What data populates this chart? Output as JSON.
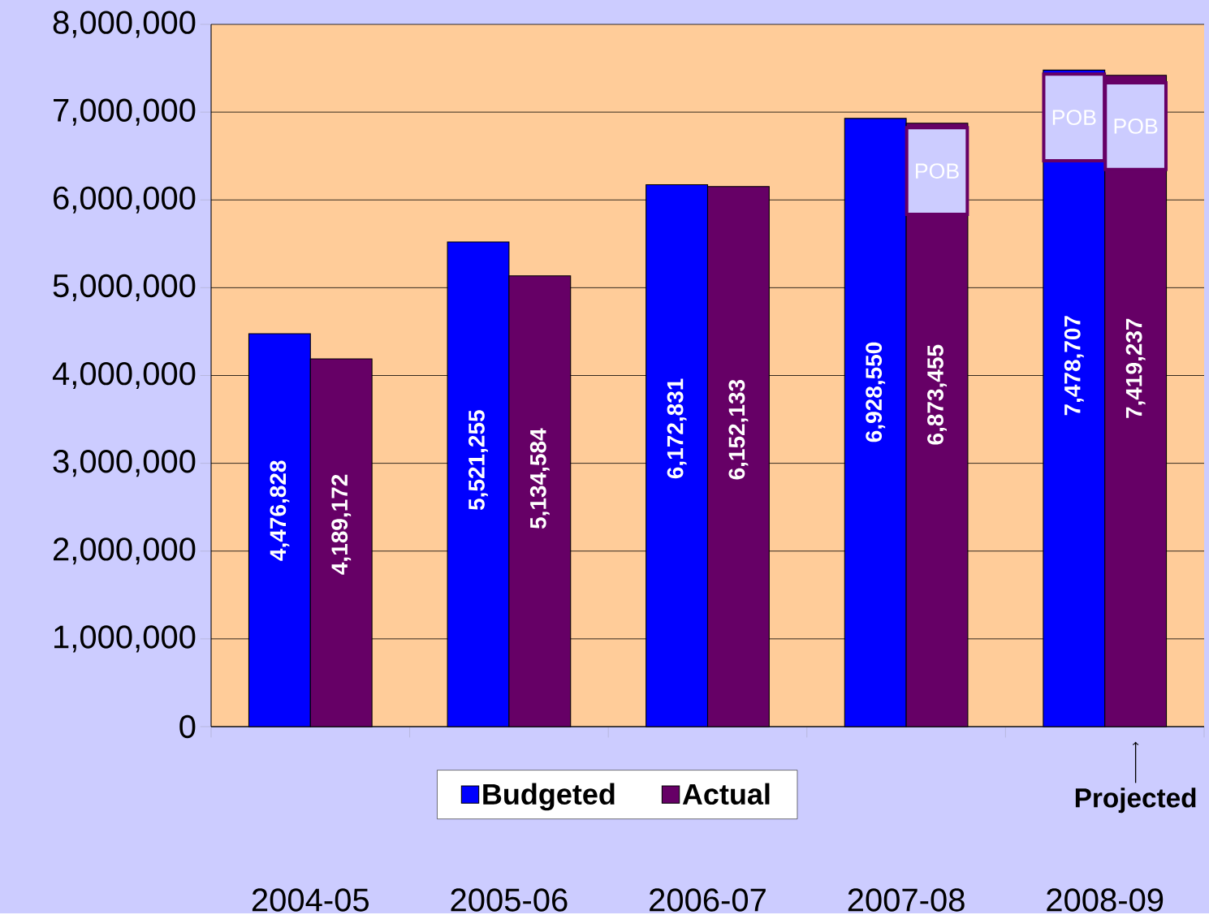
{
  "chart_data": {
    "type": "bar",
    "categories": [
      "2004-05",
      "2005-06",
      "2006-07",
      "2007-08",
      "2008-09"
    ],
    "series": [
      {
        "name": "Budgeted",
        "color": "#0000ff",
        "values": [
          4476828,
          5521255,
          6172831,
          6928550,
          7478707
        ],
        "value_labels": [
          "4,476,828",
          "5,521,255",
          "6,172,831",
          "6,928,550",
          "7,478,707"
        ]
      },
      {
        "name": "Actual",
        "color": "#660066",
        "values": [
          4189172,
          5134584,
          6152133,
          6873455,
          7419237
        ],
        "value_labels": [
          "4,189,172",
          "5,134,584",
          "6,152,133",
          "6,873,455",
          "7,419,237"
        ]
      }
    ],
    "ylim": [
      0,
      8000000
    ],
    "yticks": [
      {
        "value": 0,
        "label": "0"
      },
      {
        "value": 1000000,
        "label": "1,000,000"
      },
      {
        "value": 2000000,
        "label": "2,000,000"
      },
      {
        "value": 3000000,
        "label": "3,000,000"
      },
      {
        "value": 4000000,
        "label": "4,000,000"
      },
      {
        "value": 5000000,
        "label": "5,000,000"
      },
      {
        "value": 6000000,
        "label": "6,000,000"
      },
      {
        "value": 7000000,
        "label": "7,000,000"
      },
      {
        "value": 8000000,
        "label": "8,000,000"
      }
    ],
    "grid": "y",
    "legend": "bottom",
    "annotations": [
      {
        "text": "POB",
        "x": "2007-08",
        "y": 6330000
      },
      {
        "text": "POB",
        "x": "2008-09",
        "y": 6940000
      },
      {
        "text": "POB",
        "x": "2008-09",
        "y": 6840000
      },
      "Projected"
    ]
  }
}
